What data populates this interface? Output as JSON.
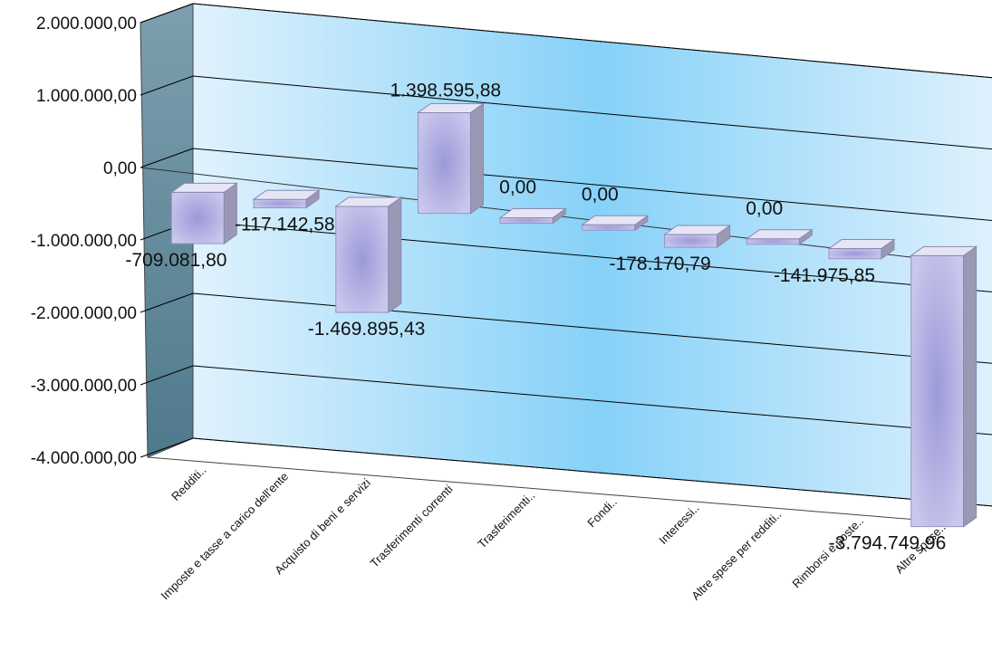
{
  "chart_data": {
    "type": "bar",
    "style": "3d-column",
    "categories": [
      "Redditi..",
      "Imposte e tasse a carico dell'ente",
      "Acquisto di beni e servizi",
      "Trasferimenti correnti",
      "Trasferimenti..",
      "Fondi..",
      "Interessi..",
      "Altre spese per redditi..",
      "Rimborsi e poste..",
      "Altre spese.."
    ],
    "values": [
      -709081.8,
      -117142.58,
      -1469895.43,
      1398595.88,
      0,
      0,
      -178170.79,
      0,
      -141975.85,
      -3794749.96
    ],
    "data_labels": [
      "-709.081,80",
      "-117.142,58",
      "-1.469.895,43",
      "1.398.595,88",
      "0,00",
      "0,00",
      "-178.170,79",
      "0,00",
      "-141.975,85",
      "-3.794.749,96"
    ],
    "y_ticks": [
      {
        "value": 2000000,
        "label": "2.000.000,00"
      },
      {
        "value": 1000000,
        "label": "1.000.000,00"
      },
      {
        "value": 0,
        "label": "0,00"
      },
      {
        "value": -1000000,
        "label": "-1.000.000,00"
      },
      {
        "value": -2000000,
        "label": "-2.000.000,00"
      },
      {
        "value": -3000000,
        "label": "-3.000.000,00"
      },
      {
        "value": -4000000,
        "label": "-4.000.000,00"
      }
    ],
    "ylim": [
      -4000000,
      2000000
    ],
    "title": "",
    "xlabel": "",
    "ylabel": "",
    "grid": true,
    "legend": "none",
    "colors": {
      "bar": "#c9c7ec",
      "bar_center": "#9c99d8",
      "bar_side": "#9a98b4",
      "bar_top": "#e6e5f6",
      "wall_light": "#e0f2fd",
      "wall_mid": "#86d1f8",
      "side_wall": "#7d9fae",
      "gridline": "#000000"
    }
  }
}
